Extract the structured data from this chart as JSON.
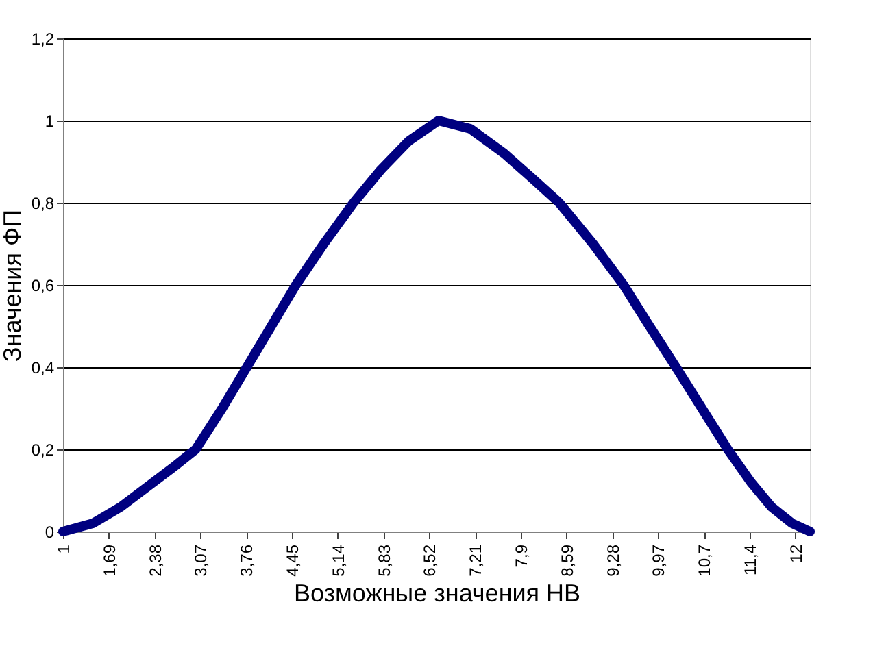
{
  "chart_data": {
    "type": "line",
    "xlabel": "Возможные значения НВ",
    "ylabel": "Значения ФП",
    "x": [
      1,
      1.45,
      1.87,
      2.28,
      2.69,
      3.0,
      3.4,
      3.77,
      4.14,
      4.51,
      4.93,
      5.38,
      5.79,
      6.21,
      6.66,
      7.14,
      7.65,
      8.07,
      8.48,
      8.99,
      9.45,
      9.84,
      10.24,
      10.63,
      11.02,
      11.37,
      11.68,
      11.99,
      12.26
    ],
    "series": [
      {
        "color": "#000080",
        "values": [
          0,
          0.02,
          0.06,
          0.11,
          0.16,
          0.2,
          0.3,
          0.4,
          0.5,
          0.6,
          0.7,
          0.8,
          0.88,
          0.95,
          1.0,
          0.98,
          0.92,
          0.86,
          0.8,
          0.7,
          0.6,
          0.5,
          0.4,
          0.3,
          0.2,
          0.12,
          0.06,
          0.02,
          0
        ]
      }
    ],
    "xlim": [
      1,
      12.26
    ],
    "xticks": [
      1,
      {
        "value": 1.69,
        "label": "1,69"
      },
      {
        "value": 2.38,
        "label": "2,38"
      },
      {
        "value": 3.07,
        "label": "3,07"
      },
      {
        "value": 3.76,
        "label": "3,76"
      },
      {
        "value": 4.45,
        "label": "4,45"
      },
      {
        "value": 5.14,
        "label": "5,14"
      },
      {
        "value": 5.83,
        "label": "5,83"
      },
      {
        "value": 6.52,
        "label": "6,52"
      },
      {
        "value": 7.21,
        "label": "7,21"
      },
      {
        "value": 7.9,
        "label": "7,9"
      },
      {
        "value": 8.59,
        "label": "8,59"
      },
      {
        "value": 9.28,
        "label": "9,28"
      },
      {
        "value": 9.97,
        "label": "9,97"
      },
      {
        "value": 10.66,
        "label": "10,7"
      },
      {
        "value": 11.35,
        "label": "11,4"
      },
      {
        "value": 12.04,
        "label": "12"
      }
    ],
    "ylim": [
      0,
      1.2
    ],
    "yticks": [
      0,
      {
        "value": 0.2,
        "label": "0,2"
      },
      {
        "value": 0.4,
        "label": "0,4"
      },
      {
        "value": 0.6,
        "label": "0,6"
      },
      {
        "value": 0.8,
        "label": "0,8"
      },
      1,
      {
        "value": 1.2,
        "label": "1,2"
      }
    ],
    "grid": "y",
    "legend": false,
    "line_style": "solid"
  }
}
